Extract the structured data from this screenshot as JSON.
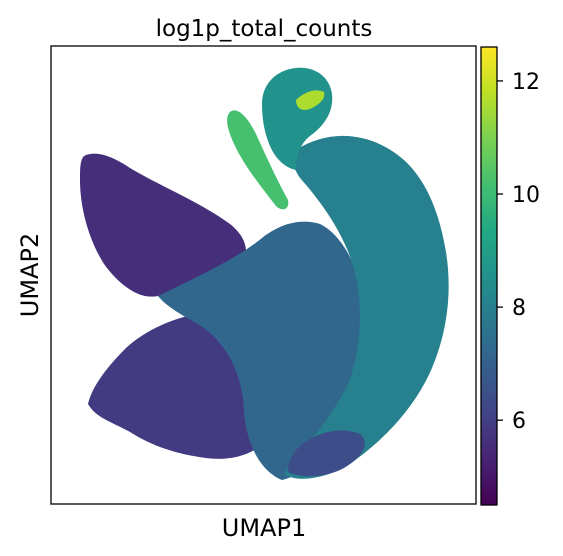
{
  "chart_data": {
    "type": "scatter",
    "title": "log1p_total_counts",
    "xlabel": "UMAP1",
    "ylabel": "UMAP2",
    "x_ticks_shown": false,
    "y_ticks_shown": false,
    "colorbar": {
      "cmap": "viridis",
      "min": 4.5,
      "max": 12.6,
      "ticks": [
        6,
        8,
        10,
        12
      ],
      "tick_labels": [
        "6",
        "8",
        "10",
        "12"
      ]
    },
    "regions": [
      {
        "name": "left upper arm",
        "value": 5.6
      },
      {
        "name": "lower left lobe",
        "value": 5.9
      },
      {
        "name": "central body",
        "value": 7.2
      },
      {
        "name": "right fan",
        "value": 8.0
      },
      {
        "name": "top hook",
        "value": 8.6
      },
      {
        "name": "upper thin streak",
        "value": 10.2
      },
      {
        "name": "hook tip",
        "value": 11.6
      },
      {
        "name": "bottom right tail",
        "value": 6.4
      }
    ]
  }
}
